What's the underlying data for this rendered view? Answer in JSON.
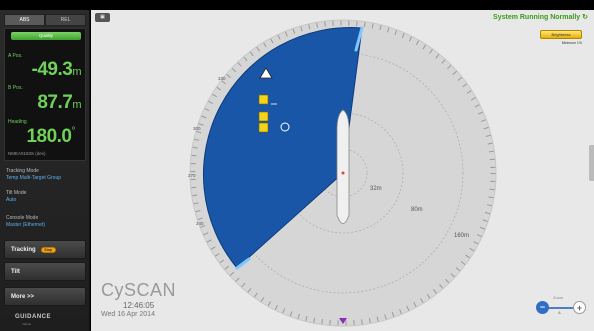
{
  "sidebar": {
    "toggle": {
      "left": "ABS",
      "right": "REL"
    },
    "readout": {
      "quality_label": "Quality",
      "a_pos_label": "A Pos.",
      "a_pos_value": "-49.3",
      "a_pos_unit": "m",
      "b_pos_label": "B Pos.",
      "b_pos_value": "87.7",
      "b_pos_unit": "m",
      "heading_label": "Heading",
      "heading_value": "180.0",
      "heading_unit": "°",
      "nmea": "NMEA0183S (dev)"
    },
    "tracking_mode": {
      "label": "Tracking Mode",
      "value": "Temp Multi-Target Group"
    },
    "tilt_mode": {
      "label": "Tilt Mode",
      "value": "Auto"
    },
    "console_mode": {
      "label": "Console Mode",
      "value": "Master (Ethernet)"
    },
    "buttons": {
      "tracking": "Tracking",
      "tracking_stop": "Stop",
      "tilt": "Tilt",
      "more": "More >>"
    },
    "logo": "GUIDANCE",
    "logo_sub": "marine"
  },
  "main": {
    "status": "System Running Normally",
    "brightness_label": "Brightness",
    "brightness_value": "Minimum  1%",
    "brand": "CySCAN",
    "time": "12:46:05",
    "date": "Wed 16 Apr 2014",
    "zoom_label": "Zoom",
    "zoom_mode": "A",
    "top_icon": "▣"
  },
  "radar": {
    "range_labels": [
      "32m",
      "80m",
      "160m"
    ],
    "bearing_labels": [
      "330",
      "300",
      "270",
      "240"
    ],
    "sector_color": "#1a56a8",
    "sector_edge_color": "#0b3a7c",
    "marker_color": "#8a2fb5"
  },
  "colors": {
    "accent_green": "#6fd05a",
    "status_green": "#3a9a1a",
    "blue_text": "#5ab0f0"
  }
}
